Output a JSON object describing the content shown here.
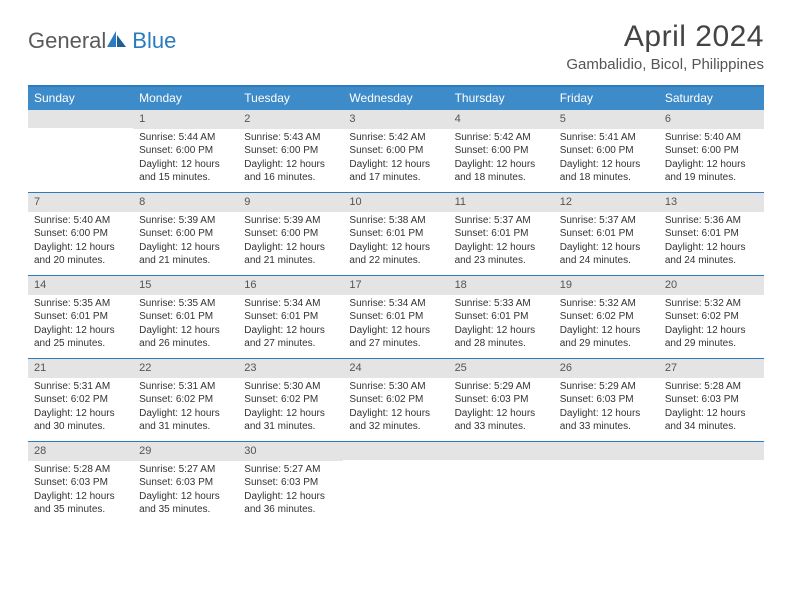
{
  "logo": {
    "part1": "General",
    "part2": "Blue"
  },
  "title": "April 2024",
  "location": "Gambalidio, Bicol, Philippines",
  "day_headers": [
    "Sunday",
    "Monday",
    "Tuesday",
    "Wednesday",
    "Thursday",
    "Friday",
    "Saturday"
  ],
  "colors": {
    "header_bg": "#3d8bc9",
    "border": "#2a7bbf",
    "daynum_bg": "#e4e4e4",
    "text": "#333333"
  },
  "weeks": [
    [
      {
        "num": "",
        "lines": []
      },
      {
        "num": "1",
        "lines": [
          "Sunrise: 5:44 AM",
          "Sunset: 6:00 PM",
          "Daylight: 12 hours and 15 minutes."
        ]
      },
      {
        "num": "2",
        "lines": [
          "Sunrise: 5:43 AM",
          "Sunset: 6:00 PM",
          "Daylight: 12 hours and 16 minutes."
        ]
      },
      {
        "num": "3",
        "lines": [
          "Sunrise: 5:42 AM",
          "Sunset: 6:00 PM",
          "Daylight: 12 hours and 17 minutes."
        ]
      },
      {
        "num": "4",
        "lines": [
          "Sunrise: 5:42 AM",
          "Sunset: 6:00 PM",
          "Daylight: 12 hours and 18 minutes."
        ]
      },
      {
        "num": "5",
        "lines": [
          "Sunrise: 5:41 AM",
          "Sunset: 6:00 PM",
          "Daylight: 12 hours and 18 minutes."
        ]
      },
      {
        "num": "6",
        "lines": [
          "Sunrise: 5:40 AM",
          "Sunset: 6:00 PM",
          "Daylight: 12 hours and 19 minutes."
        ]
      }
    ],
    [
      {
        "num": "7",
        "lines": [
          "Sunrise: 5:40 AM",
          "Sunset: 6:00 PM",
          "Daylight: 12 hours and 20 minutes."
        ]
      },
      {
        "num": "8",
        "lines": [
          "Sunrise: 5:39 AM",
          "Sunset: 6:00 PM",
          "Daylight: 12 hours and 21 minutes."
        ]
      },
      {
        "num": "9",
        "lines": [
          "Sunrise: 5:39 AM",
          "Sunset: 6:00 PM",
          "Daylight: 12 hours and 21 minutes."
        ]
      },
      {
        "num": "10",
        "lines": [
          "Sunrise: 5:38 AM",
          "Sunset: 6:01 PM",
          "Daylight: 12 hours and 22 minutes."
        ]
      },
      {
        "num": "11",
        "lines": [
          "Sunrise: 5:37 AM",
          "Sunset: 6:01 PM",
          "Daylight: 12 hours and 23 minutes."
        ]
      },
      {
        "num": "12",
        "lines": [
          "Sunrise: 5:37 AM",
          "Sunset: 6:01 PM",
          "Daylight: 12 hours and 24 minutes."
        ]
      },
      {
        "num": "13",
        "lines": [
          "Sunrise: 5:36 AM",
          "Sunset: 6:01 PM",
          "Daylight: 12 hours and 24 minutes."
        ]
      }
    ],
    [
      {
        "num": "14",
        "lines": [
          "Sunrise: 5:35 AM",
          "Sunset: 6:01 PM",
          "Daylight: 12 hours and 25 minutes."
        ]
      },
      {
        "num": "15",
        "lines": [
          "Sunrise: 5:35 AM",
          "Sunset: 6:01 PM",
          "Daylight: 12 hours and 26 minutes."
        ]
      },
      {
        "num": "16",
        "lines": [
          "Sunrise: 5:34 AM",
          "Sunset: 6:01 PM",
          "Daylight: 12 hours and 27 minutes."
        ]
      },
      {
        "num": "17",
        "lines": [
          "Sunrise: 5:34 AM",
          "Sunset: 6:01 PM",
          "Daylight: 12 hours and 27 minutes."
        ]
      },
      {
        "num": "18",
        "lines": [
          "Sunrise: 5:33 AM",
          "Sunset: 6:01 PM",
          "Daylight: 12 hours and 28 minutes."
        ]
      },
      {
        "num": "19",
        "lines": [
          "Sunrise: 5:32 AM",
          "Sunset: 6:02 PM",
          "Daylight: 12 hours and 29 minutes."
        ]
      },
      {
        "num": "20",
        "lines": [
          "Sunrise: 5:32 AM",
          "Sunset: 6:02 PM",
          "Daylight: 12 hours and 29 minutes."
        ]
      }
    ],
    [
      {
        "num": "21",
        "lines": [
          "Sunrise: 5:31 AM",
          "Sunset: 6:02 PM",
          "Daylight: 12 hours and 30 minutes."
        ]
      },
      {
        "num": "22",
        "lines": [
          "Sunrise: 5:31 AM",
          "Sunset: 6:02 PM",
          "Daylight: 12 hours and 31 minutes."
        ]
      },
      {
        "num": "23",
        "lines": [
          "Sunrise: 5:30 AM",
          "Sunset: 6:02 PM",
          "Daylight: 12 hours and 31 minutes."
        ]
      },
      {
        "num": "24",
        "lines": [
          "Sunrise: 5:30 AM",
          "Sunset: 6:02 PM",
          "Daylight: 12 hours and 32 minutes."
        ]
      },
      {
        "num": "25",
        "lines": [
          "Sunrise: 5:29 AM",
          "Sunset: 6:03 PM",
          "Daylight: 12 hours and 33 minutes."
        ]
      },
      {
        "num": "26",
        "lines": [
          "Sunrise: 5:29 AM",
          "Sunset: 6:03 PM",
          "Daylight: 12 hours and 33 minutes."
        ]
      },
      {
        "num": "27",
        "lines": [
          "Sunrise: 5:28 AM",
          "Sunset: 6:03 PM",
          "Daylight: 12 hours and 34 minutes."
        ]
      }
    ],
    [
      {
        "num": "28",
        "lines": [
          "Sunrise: 5:28 AM",
          "Sunset: 6:03 PM",
          "Daylight: 12 hours and 35 minutes."
        ]
      },
      {
        "num": "29",
        "lines": [
          "Sunrise: 5:27 AM",
          "Sunset: 6:03 PM",
          "Daylight: 12 hours and 35 minutes."
        ]
      },
      {
        "num": "30",
        "lines": [
          "Sunrise: 5:27 AM",
          "Sunset: 6:03 PM",
          "Daylight: 12 hours and 36 minutes."
        ]
      },
      {
        "num": "",
        "lines": []
      },
      {
        "num": "",
        "lines": []
      },
      {
        "num": "",
        "lines": []
      },
      {
        "num": "",
        "lines": []
      }
    ]
  ]
}
